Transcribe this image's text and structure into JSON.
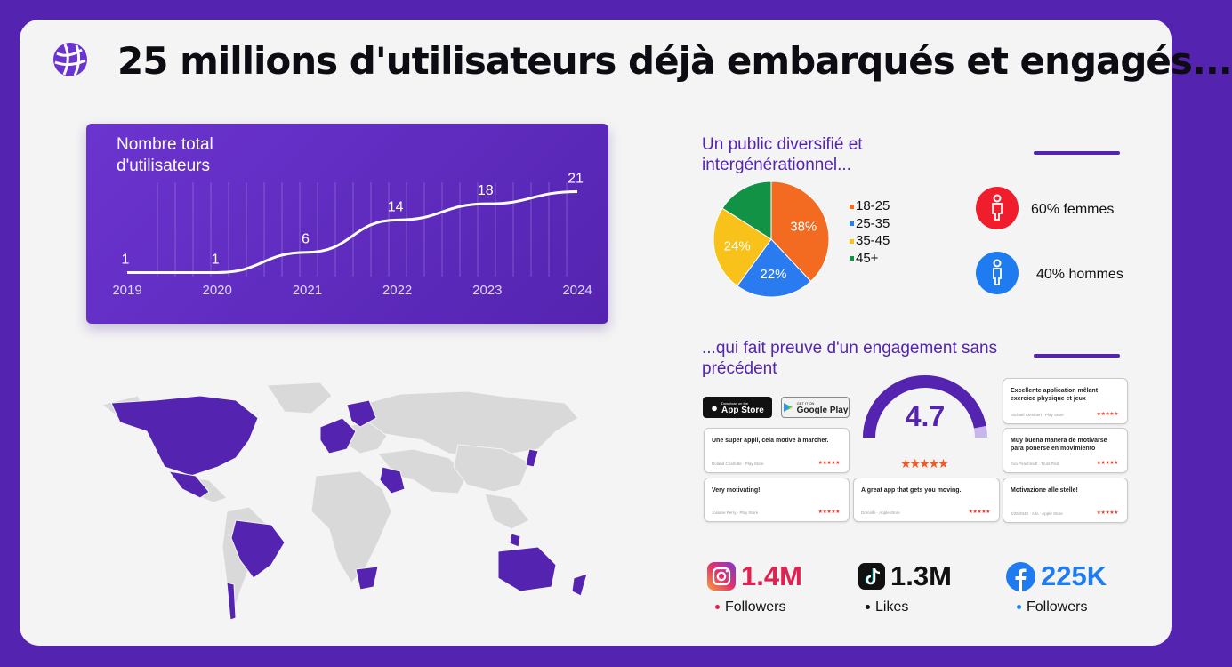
{
  "header": {
    "title": "25 millions d'utilisateurs déjà embarqués et engagés..."
  },
  "growth": {
    "title_line1": "Nombre total",
    "title_line2": "d'utilisateurs",
    "chart_data": {
      "type": "line",
      "x": [
        "2019",
        "2020",
        "2021",
        "2022",
        "2023",
        "2024"
      ],
      "values": [
        1,
        1,
        6,
        14,
        18,
        21
      ],
      "value_labels": [
        "1",
        "1",
        "6",
        "14",
        "18",
        "21"
      ],
      "tick_labels": [
        "2019",
        "2020",
        "2021",
        "2022",
        "2023",
        "2024"
      ]
    }
  },
  "demographics": {
    "title_line1": "Un public diversifié et",
    "title_line2": "intergénérationnel...",
    "chart_data": {
      "type": "pie",
      "categories": [
        "18-25",
        "25-35",
        "35-45",
        "45+"
      ],
      "values": [
        38,
        22,
        24,
        16
      ],
      "slice_labels": [
        "38%",
        "22%",
        "24%",
        ""
      ],
      "colors": [
        "#f36a21",
        "#2b7bf0",
        "#f8c21a",
        "#129245"
      ]
    },
    "legend": [
      "18-25",
      "25-35",
      "35-45",
      "45+"
    ],
    "women": "60% femmes",
    "men": "40% hommes",
    "women_color": "#f01e2c",
    "men_color": "#1f7bf0"
  },
  "engagement": {
    "title_line1": "...qui fait preuve d'un engagement sans",
    "title_line2": "précédent",
    "app_store": "App Store",
    "app_store_small": "Download on the",
    "google_play": "Google Play",
    "google_play_small": "GET IT ON",
    "rating": "4.7",
    "rating_value": 4.7,
    "rating_max": 5,
    "stars": "★★★★★",
    "reviews": [
      {
        "text": "Une super appli, cela motive à marcher.",
        "author": "Roland Charlotte · Play Store",
        "stars": "★★★★★"
      },
      {
        "text": "Very motivating!",
        "author": "Josiane Perry · Play Store",
        "stars": "★★★★★"
      },
      {
        "text": "A great app that gets you moving.",
        "author": "Dorcelle · Apple Store",
        "stars": "★★★★★"
      },
      {
        "text": "Excellente application mêlant exercice physique et jeux",
        "author": "Michaël Remibert · Play Store",
        "stars": "★★★★★"
      },
      {
        "text": "Muy buena manera de motivarse para ponerse en movimiento",
        "author": "Eva Pirashmidt · Trust Pilot",
        "stars": "★★★★★"
      },
      {
        "text": "Motivazione alle stelle!",
        "author": "2/25/2040 · Alto · Apple Store",
        "stars": "★★★★★"
      }
    ]
  },
  "social": {
    "instagram": {
      "count": "1.4M",
      "label": "Followers",
      "color": "#e32150"
    },
    "tiktok": {
      "count": "1.3M",
      "label": "Likes",
      "color": "#111111"
    },
    "facebook": {
      "count": "225K",
      "label": "Followers",
      "color": "#1f7bf0"
    }
  },
  "colors": {
    "brand": "#5424b0",
    "accent": "#6b34cf",
    "background": "#f4f4f4"
  }
}
